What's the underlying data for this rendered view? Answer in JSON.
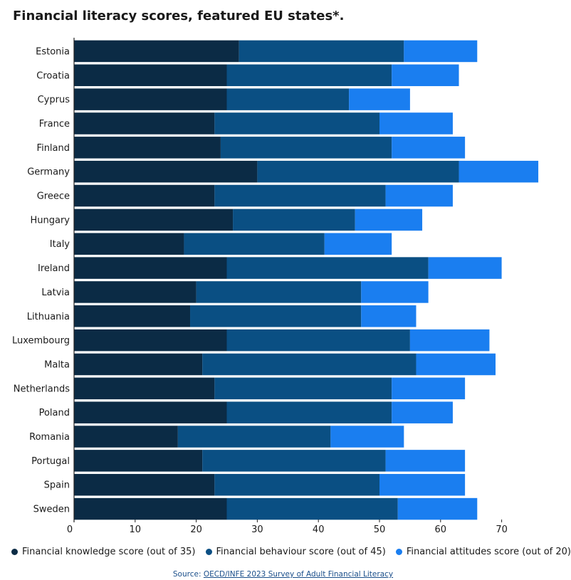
{
  "colors": {
    "knowledge": "#0b2b45",
    "behaviour": "#0a4f83",
    "attitudes": "#1a7ef0",
    "axis": "#222222",
    "background_band": "#ffffff"
  },
  "chart_data": {
    "type": "bar",
    "orientation": "horizontal",
    "stacked": true,
    "title": "Financial literacy scores, featured EU states*.",
    "categories": [
      "Estonia",
      "Croatia",
      "Cyprus",
      "France",
      "Finland",
      "Germany",
      "Greece",
      "Hungary",
      "Italy",
      "Ireland",
      "Latvia",
      "Lithuania",
      "Luxembourg",
      "Malta",
      "Netherlands",
      "Poland",
      "Romania",
      "Portugal",
      "Spain",
      "Sweden"
    ],
    "series": [
      {
        "name": "Financial knowledge score (out of 35)",
        "values": [
          27,
          25,
          25,
          23,
          24,
          30,
          23,
          26,
          18,
          25,
          20,
          19,
          25,
          21,
          23,
          25,
          17,
          21,
          23,
          25
        ]
      },
      {
        "name": "Financial behaviour score (out of 45)",
        "values": [
          27,
          27,
          20,
          27,
          28,
          33,
          28,
          20,
          23,
          33,
          27,
          28,
          30,
          35,
          29,
          27,
          25,
          30,
          27,
          28
        ]
      },
      {
        "name": "Financial attitudes score (out of 20)",
        "values": [
          12,
          11,
          10,
          12,
          12,
          13,
          11,
          11,
          11,
          12,
          11,
          9,
          13,
          13,
          12,
          10,
          12,
          13,
          14,
          13
        ]
      }
    ],
    "xlim": [
      0,
      75
    ],
    "xticks": [
      0,
      10,
      20,
      30,
      40,
      50,
      60,
      70
    ],
    "xlabel": "",
    "ylabel": "",
    "grid": false,
    "legend_position": "bottom"
  },
  "source": {
    "prefix": "Source: ",
    "link_text": "OECD/INFE 2023 Survey of Adult Financial Literacy"
  }
}
